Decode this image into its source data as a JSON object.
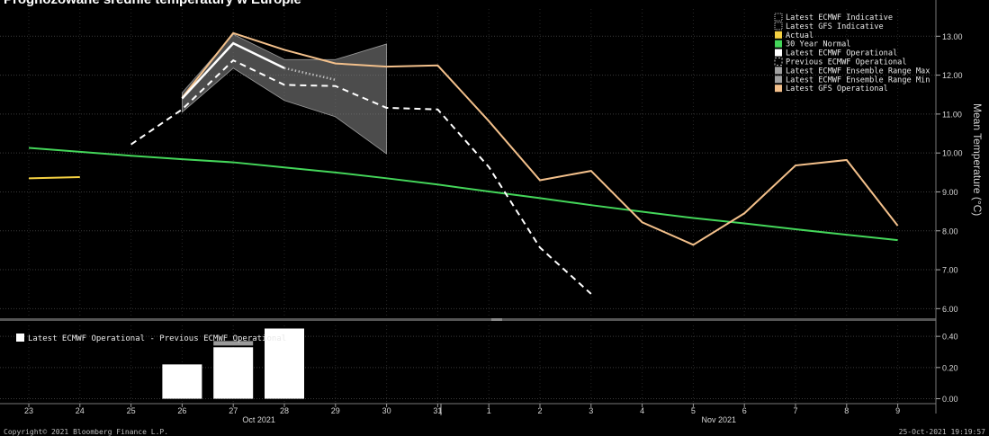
{
  "title": "Prognozowane średnie temperatury w Europie",
  "colors": {
    "background": "#000000",
    "actual": "#f5d142",
    "normal": "#44d65a",
    "ecmwf_op": "#ffffff",
    "gfs_op": "#f3c08b",
    "range": "#8a8a8a",
    "bar": "#ffffff",
    "grid": "#3a3a3a"
  },
  "chart_data": [
    {
      "type": "line",
      "ylabel": "Mean Temperature (°C)",
      "ylim": [
        5.8,
        13.7
      ],
      "yticks": [
        6,
        7,
        8,
        9,
        10,
        11,
        12,
        13
      ],
      "ytick_labels": [
        "6.00",
        "7.00",
        "8.00",
        "9.00",
        "10.00",
        "11.00",
        "12.00",
        "13.00"
      ],
      "x_labels": [
        "23",
        "24",
        "25",
        "26",
        "27",
        "28",
        "29",
        "30",
        "31",
        "1",
        "2",
        "3",
        "4",
        "5",
        "6",
        "7",
        "8",
        "9"
      ],
      "x_group_labels": [
        {
          "label": "Oct 2021",
          "at": 4.5
        },
        {
          "label": "Nov 2021",
          "at": 13.5
        }
      ],
      "legend_position": "top-right",
      "legend": [
        {
          "label": "Latest ECMWF Indicative",
          "swatch": "dotted-white"
        },
        {
          "label": "Latest GFS Indicative",
          "swatch": "dotted-white"
        },
        {
          "label": "Actual",
          "swatch": "yellow"
        },
        {
          "label": "30 Year Normal",
          "swatch": "green"
        },
        {
          "label": "Latest ECMWF Operational",
          "swatch": "white"
        },
        {
          "label": "Previous ECMWF Operational",
          "swatch": "dashed-white"
        },
        {
          "label": "Latest ECMWF Ensemble Range Max",
          "swatch": "gray"
        },
        {
          "label": "Latest ECMWF Ensemble Range Min",
          "swatch": "gray"
        },
        {
          "label": "Latest GFS Operational",
          "swatch": "orange"
        }
      ],
      "series": [
        {
          "name": "Actual",
          "style": "solid",
          "color_key": "actual",
          "x": [
            0,
            1
          ],
          "y": [
            9.35,
            9.38
          ]
        },
        {
          "name": "30 Year Normal",
          "style": "solid",
          "color_key": "normal",
          "x": [
            0,
            1,
            2,
            3,
            4,
            5,
            6,
            7,
            8,
            9,
            10,
            11,
            12,
            13,
            14,
            15,
            16,
            17
          ],
          "y": [
            10.13,
            10.03,
            9.93,
            9.84,
            9.76,
            9.63,
            9.5,
            9.35,
            9.19,
            9.01,
            8.84,
            8.66,
            8.49,
            8.33,
            8.19,
            8.04,
            7.9,
            7.76
          ]
        },
        {
          "name": "Latest ECMWF Operational",
          "style": "solid",
          "color_key": "ecmwf_op",
          "x": [
            3,
            4,
            5
          ],
          "y": [
            11.4,
            12.82,
            12.18
          ]
        },
        {
          "name": "Latest ECMWF Indicative",
          "style": "dotted",
          "color_key": "ecmwf_op",
          "x": [
            5,
            6
          ],
          "y": [
            12.18,
            11.88
          ]
        },
        {
          "name": "Previous ECMWF Operational",
          "style": "dashed",
          "color_key": "ecmwf_op",
          "x": [
            2,
            3,
            4,
            5,
            6,
            7,
            8,
            9,
            10,
            11
          ],
          "y": [
            10.22,
            11.12,
            12.38,
            11.75,
            11.72,
            11.16,
            11.12,
            9.64,
            7.57,
            6.38
          ]
        },
        {
          "name": "Latest GFS Operational",
          "style": "solid",
          "color_key": "gfs_op",
          "x": [
            3,
            4,
            5,
            6,
            7,
            8,
            9,
            10,
            11,
            12,
            13,
            14,
            15,
            16,
            17
          ],
          "y": [
            11.42,
            13.08,
            12.65,
            12.3,
            12.22,
            12.25,
            10.82,
            9.3,
            9.54,
            8.22,
            7.64,
            8.45,
            9.68,
            9.82,
            8.13
          ]
        },
        {
          "name": "Latest ECMWF Ensemble Range Max",
          "style": "band-top",
          "color_key": "range",
          "x": [
            3,
            4,
            5,
            6,
            7
          ],
          "y": [
            11.55,
            13.05,
            12.4,
            12.4,
            12.8
          ]
        },
        {
          "name": "Latest ECMWF Ensemble Range Min",
          "style": "band-bottom",
          "color_key": "range",
          "x": [
            3,
            4,
            5,
            6,
            7
          ],
          "y": [
            11.05,
            12.18,
            11.35,
            10.93,
            9.98
          ]
        }
      ]
    },
    {
      "type": "bar",
      "legend": [
        {
          "label": "Latest ECMWF Operational - Previous ECMWF Operational",
          "swatch": "white"
        }
      ],
      "ylim": [
        -0.02,
        0.47
      ],
      "yticks": [
        0,
        0.2,
        0.4
      ],
      "ytick_labels": [
        "0.00",
        "0.20",
        "0.40"
      ],
      "bars": [
        {
          "x": 3,
          "value": 0.22
        },
        {
          "x": 4,
          "value": 0.33,
          "marker": 0.37
        },
        {
          "x": 5,
          "value": 0.45
        }
      ]
    }
  ],
  "footer": {
    "copyright": "Copyright© 2021 Bloomberg Finance L.P.",
    "timestamp": "25-Oct-2021 19:19:57"
  }
}
